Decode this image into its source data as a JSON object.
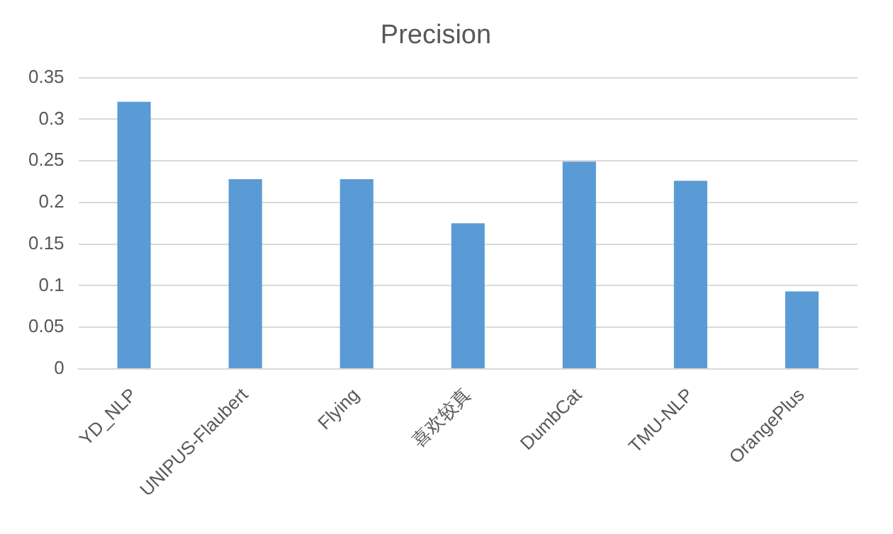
{
  "chart_data": {
    "type": "bar",
    "title": "Precision",
    "categories": [
      "YD_NLP",
      "UNIPUS-Flaubert",
      "Flying",
      "喜欢较真",
      "DumbCat",
      "TMU-NLP",
      "OrangePlus"
    ],
    "values": [
      0.321,
      0.228,
      0.228,
      0.175,
      0.249,
      0.226,
      0.093
    ],
    "color": "#5b9bd5",
    "ylim": [
      0,
      0.35
    ],
    "yticks": [
      0,
      0.05,
      0.1,
      0.15,
      0.2,
      0.25,
      0.3,
      0.35
    ],
    "grid": "y",
    "legend": false
  }
}
